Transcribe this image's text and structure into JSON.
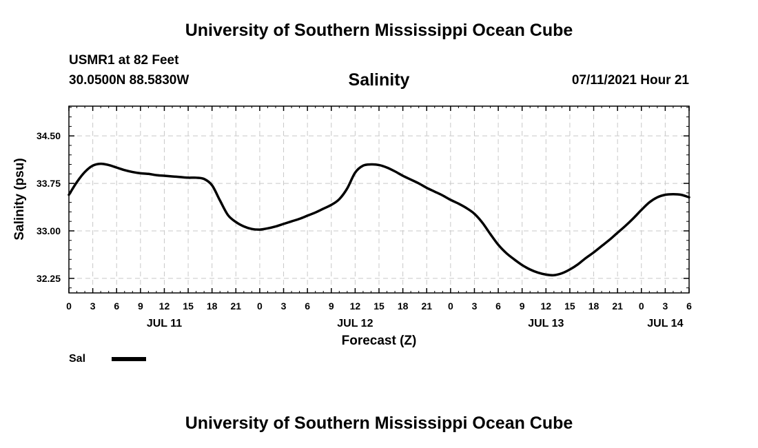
{
  "header": {
    "title": "University of Southern Mississippi Ocean Cube",
    "station": "USMR1 at 82 Feet",
    "coords": "30.0500N  88.5830W",
    "chart_title": "Salinity",
    "datetime": "07/11/2021 Hour 21"
  },
  "footer": {
    "title": "University of Southern Mississippi Ocean Cube"
  },
  "chart_data": {
    "type": "line",
    "title": "Salinity",
    "xlabel": "Forecast (Z)",
    "ylabel": "Salinity (psu)",
    "xlim": [
      0,
      78
    ],
    "ylim": [
      32.02,
      34.97
    ],
    "yticks": [
      32.25,
      33.0,
      33.75,
      34.5
    ],
    "ytick_labels": [
      "32.25",
      "33.00",
      "33.75",
      "34.50"
    ],
    "xticks": [
      0,
      3,
      6,
      9,
      12,
      15,
      18,
      21,
      24,
      27,
      30,
      33,
      36,
      39,
      42,
      45,
      48,
      51,
      54,
      57,
      60,
      63,
      66,
      69,
      72,
      75,
      78
    ],
    "xtick_labels": [
      "0",
      "3",
      "6",
      "9",
      "12",
      "15",
      "18",
      "21",
      "0",
      "3",
      "6",
      "9",
      "12",
      "15",
      "18",
      "21",
      "0",
      "3",
      "6",
      "9",
      "12",
      "15",
      "18",
      "21",
      "0",
      "3",
      "6"
    ],
    "day_labels": [
      {
        "hour": 12,
        "label": "JUL 11"
      },
      {
        "hour": 36,
        "label": "JUL 12"
      },
      {
        "hour": 60,
        "label": "JUL 13"
      },
      {
        "hour": 75,
        "label": "JUL 14"
      }
    ],
    "grid": true,
    "series": [
      {
        "name": "Sal",
        "color": "#000000",
        "x": [
          0,
          1,
          2,
          3,
          4,
          5,
          6,
          7,
          8,
          9,
          10,
          11,
          12,
          13,
          14,
          15,
          16,
          17,
          18,
          19,
          20,
          21,
          22,
          23,
          24,
          25,
          26,
          27,
          28,
          29,
          30,
          31,
          32,
          33,
          34,
          35,
          36,
          37,
          38,
          39,
          40,
          41,
          42,
          43,
          44,
          45,
          46,
          47,
          48,
          49,
          50,
          51,
          52,
          53,
          54,
          55,
          56,
          57,
          58,
          59,
          60,
          61,
          62,
          63,
          64,
          65,
          66,
          67,
          68,
          69,
          70,
          71,
          72,
          73,
          74,
          75,
          76,
          77,
          78
        ],
        "values": [
          33.57,
          33.77,
          33.93,
          34.03,
          34.06,
          34.04,
          34.0,
          33.96,
          33.93,
          33.91,
          33.9,
          33.88,
          33.87,
          33.86,
          33.85,
          33.84,
          33.84,
          33.82,
          33.72,
          33.48,
          33.25,
          33.14,
          33.07,
          33.03,
          33.02,
          33.04,
          33.07,
          33.11,
          33.15,
          33.19,
          33.24,
          33.29,
          33.35,
          33.41,
          33.5,
          33.67,
          33.92,
          34.03,
          34.05,
          34.04,
          34.0,
          33.94,
          33.87,
          33.81,
          33.75,
          33.68,
          33.62,
          33.56,
          33.49,
          33.43,
          33.36,
          33.27,
          33.13,
          32.95,
          32.78,
          32.65,
          32.55,
          32.46,
          32.39,
          32.34,
          32.31,
          32.3,
          32.33,
          32.39,
          32.47,
          32.57,
          32.66,
          32.76,
          32.86,
          32.97,
          33.08,
          33.2,
          33.33,
          33.45,
          33.53,
          33.57,
          33.58,
          33.57,
          33.53
        ]
      }
    ],
    "legend": [
      {
        "label": "Sal",
        "position": "bottom-left"
      }
    ]
  }
}
